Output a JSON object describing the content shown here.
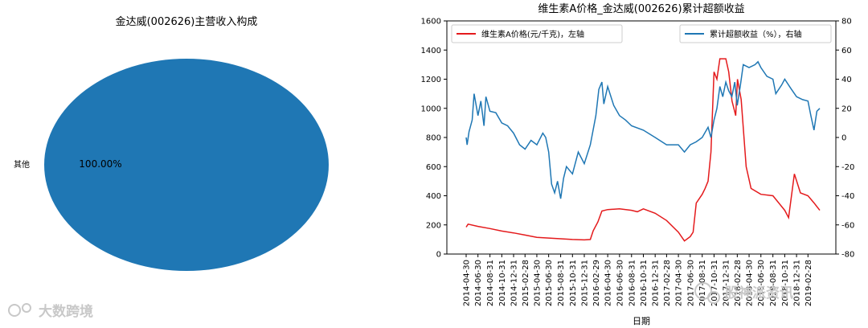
{
  "chart_data": [
    {
      "type": "pie",
      "title": "金达威(002626)主营收入构成",
      "labels": [
        "其他"
      ],
      "values": [
        100.0
      ],
      "value_labels": [
        "100.00%"
      ],
      "colors": [
        "#1f77b4"
      ]
    },
    {
      "type": "line",
      "title": "维生素A价格_金达威(002626)累计超额收益",
      "xlabel": "日期",
      "x_ticks": [
        "2014-04-30",
        "2014-06-30",
        "2014-08-31",
        "2014-10-31",
        "2014-12-31",
        "2015-02-28",
        "2015-04-30",
        "2015-06-30",
        "2015-08-31",
        "2015-10-31",
        "2015-12-31",
        "2016-02-29",
        "2016-04-30",
        "2016-06-30",
        "2016-08-31",
        "2016-10-31",
        "2016-12-31",
        "2017-02-28",
        "2017-04-30",
        "2017-06-30",
        "2017-08-31",
        "2017-10-31",
        "2017-12-31",
        "2018-02-28",
        "2018-04-30",
        "2018-06-30",
        "2018-08-31",
        "2018-10-31",
        "2018-12-31",
        "2019-02-28"
      ],
      "x_range": [
        "2014-04-30",
        "2019-04-30"
      ],
      "y_left": {
        "ticks": [
          0,
          200,
          400,
          600,
          800,
          1000,
          1200,
          1400,
          1600
        ],
        "lim": [
          0,
          1600
        ]
      },
      "y_right": {
        "ticks": [
          -80,
          -60,
          -40,
          -20,
          0,
          20,
          40,
          60,
          80
        ],
        "lim": [
          -80,
          80
        ]
      },
      "legend": {
        "left": "维生素A价格(元/千克)，左轴",
        "right": "累计超额收益（%），右轴"
      },
      "series": [
        {
          "name": "维生素A价格(元/千克)，左轴",
          "axis": "left",
          "color": "#e41a1c",
          "points": [
            [
              "2014-04-30",
              185
            ],
            [
              "2014-05-10",
              205
            ],
            [
              "2014-06-30",
              190
            ],
            [
              "2014-08-31",
              175
            ],
            [
              "2014-10-31",
              158
            ],
            [
              "2014-12-31",
              145
            ],
            [
              "2015-02-28",
              130
            ],
            [
              "2015-04-30",
              115
            ],
            [
              "2015-06-30",
              110
            ],
            [
              "2015-08-31",
              105
            ],
            [
              "2015-10-31",
              100
            ],
            [
              "2015-12-31",
              97
            ],
            [
              "2016-01-31",
              100
            ],
            [
              "2016-02-15",
              160
            ],
            [
              "2016-03-10",
              220
            ],
            [
              "2016-03-31",
              295
            ],
            [
              "2016-04-30",
              305
            ],
            [
              "2016-06-30",
              310
            ],
            [
              "2016-08-31",
              300
            ],
            [
              "2016-09-30",
              290
            ],
            [
              "2016-10-31",
              310
            ],
            [
              "2016-12-31",
              280
            ],
            [
              "2017-02-28",
              230
            ],
            [
              "2017-04-30",
              150
            ],
            [
              "2017-05-31",
              90
            ],
            [
              "2017-06-30",
              120
            ],
            [
              "2017-07-15",
              150
            ],
            [
              "2017-07-31",
              350
            ],
            [
              "2017-08-31",
              410
            ],
            [
              "2017-09-15",
              450
            ],
            [
              "2017-09-30",
              500
            ],
            [
              "2017-10-15",
              700
            ],
            [
              "2017-10-31",
              1250
            ],
            [
              "2017-11-15",
              1200
            ],
            [
              "2017-11-30",
              1340
            ],
            [
              "2017-12-31",
              1340
            ],
            [
              "2018-01-15",
              1250
            ],
            [
              "2018-02-01",
              1050
            ],
            [
              "2018-02-20",
              950
            ],
            [
              "2018-03-01",
              1200
            ],
            [
              "2018-03-20",
              1060
            ],
            [
              "2018-04-15",
              600
            ],
            [
              "2018-05-10",
              450
            ],
            [
              "2018-06-30",
              410
            ],
            [
              "2018-08-31",
              400
            ],
            [
              "2018-10-31",
              300
            ],
            [
              "2018-11-20",
              250
            ],
            [
              "2018-12-20",
              550
            ],
            [
              "2019-01-20",
              420
            ],
            [
              "2019-02-28",
              400
            ],
            [
              "2019-04-01",
              350
            ],
            [
              "2019-04-30",
              300
            ]
          ]
        },
        {
          "name": "累计超额收益（%），右轴",
          "axis": "right",
          "color": "#1f77b4",
          "points": [
            [
              "2014-04-30",
              0
            ],
            [
              "2014-05-05",
              -5
            ],
            [
              "2014-05-15",
              4
            ],
            [
              "2014-05-31",
              12
            ],
            [
              "2014-06-10",
              30
            ],
            [
              "2014-06-30",
              15
            ],
            [
              "2014-07-15",
              25
            ],
            [
              "2014-07-31",
              8
            ],
            [
              "2014-08-10",
              28
            ],
            [
              "2014-08-31",
              18
            ],
            [
              "2014-09-30",
              17
            ],
            [
              "2014-10-31",
              10
            ],
            [
              "2014-11-30",
              8
            ],
            [
              "2014-12-31",
              3
            ],
            [
              "2015-01-31",
              -5
            ],
            [
              "2015-02-28",
              -8
            ],
            [
              "2015-03-31",
              -2
            ],
            [
              "2015-04-30",
              -5
            ],
            [
              "2015-05-31",
              3
            ],
            [
              "2015-06-15",
              0
            ],
            [
              "2015-06-30",
              -10
            ],
            [
              "2015-07-15",
              -32
            ],
            [
              "2015-07-31",
              -38
            ],
            [
              "2015-08-15",
              -30
            ],
            [
              "2015-08-31",
              -42
            ],
            [
              "2015-09-15",
              -28
            ],
            [
              "2015-09-30",
              -20
            ],
            [
              "2015-10-31",
              -25
            ],
            [
              "2015-11-30",
              -10
            ],
            [
              "2015-12-31",
              -18
            ],
            [
              "2016-01-31",
              -5
            ],
            [
              "2016-02-29",
              15
            ],
            [
              "2016-03-15",
              33
            ],
            [
              "2016-03-31",
              38
            ],
            [
              "2016-04-10",
              23
            ],
            [
              "2016-04-30",
              35
            ],
            [
              "2016-05-31",
              22
            ],
            [
              "2016-06-30",
              15
            ],
            [
              "2016-07-31",
              12
            ],
            [
              "2016-08-31",
              8
            ],
            [
              "2016-10-31",
              5
            ],
            [
              "2016-12-31",
              0
            ],
            [
              "2017-02-28",
              -5
            ],
            [
              "2017-04-30",
              -5
            ],
            [
              "2017-05-31",
              -10
            ],
            [
              "2017-06-30",
              -5
            ],
            [
              "2017-07-31",
              -3
            ],
            [
              "2017-08-31",
              0
            ],
            [
              "2017-09-30",
              7
            ],
            [
              "2017-10-15",
              0
            ],
            [
              "2017-10-31",
              12
            ],
            [
              "2017-11-15",
              20
            ],
            [
              "2017-11-30",
              35
            ],
            [
              "2017-12-15",
              28
            ],
            [
              "2017-12-31",
              38
            ],
            [
              "2018-01-15",
              32
            ],
            [
              "2018-01-31",
              28
            ],
            [
              "2018-02-15",
              38
            ],
            [
              "2018-02-28",
              22
            ],
            [
              "2018-03-15",
              35
            ],
            [
              "2018-03-31",
              50
            ],
            [
              "2018-04-30",
              48
            ],
            [
              "2018-05-31",
              50
            ],
            [
              "2018-06-15",
              52
            ],
            [
              "2018-06-30",
              48
            ],
            [
              "2018-07-31",
              42
            ],
            [
              "2018-08-31",
              40
            ],
            [
              "2018-09-15",
              30
            ],
            [
              "2018-10-15",
              36
            ],
            [
              "2018-10-31",
              40
            ],
            [
              "2018-11-30",
              34
            ],
            [
              "2018-12-31",
              28
            ],
            [
              "2019-01-31",
              26
            ],
            [
              "2019-02-28",
              25
            ],
            [
              "2019-03-15",
              15
            ],
            [
              "2019-03-31",
              5
            ],
            [
              "2019-04-15",
              18
            ],
            [
              "2019-04-30",
              20
            ]
          ]
        }
      ]
    }
  ],
  "watermarks": {
    "left": "大数跨境",
    "right": "股神派资讯"
  }
}
